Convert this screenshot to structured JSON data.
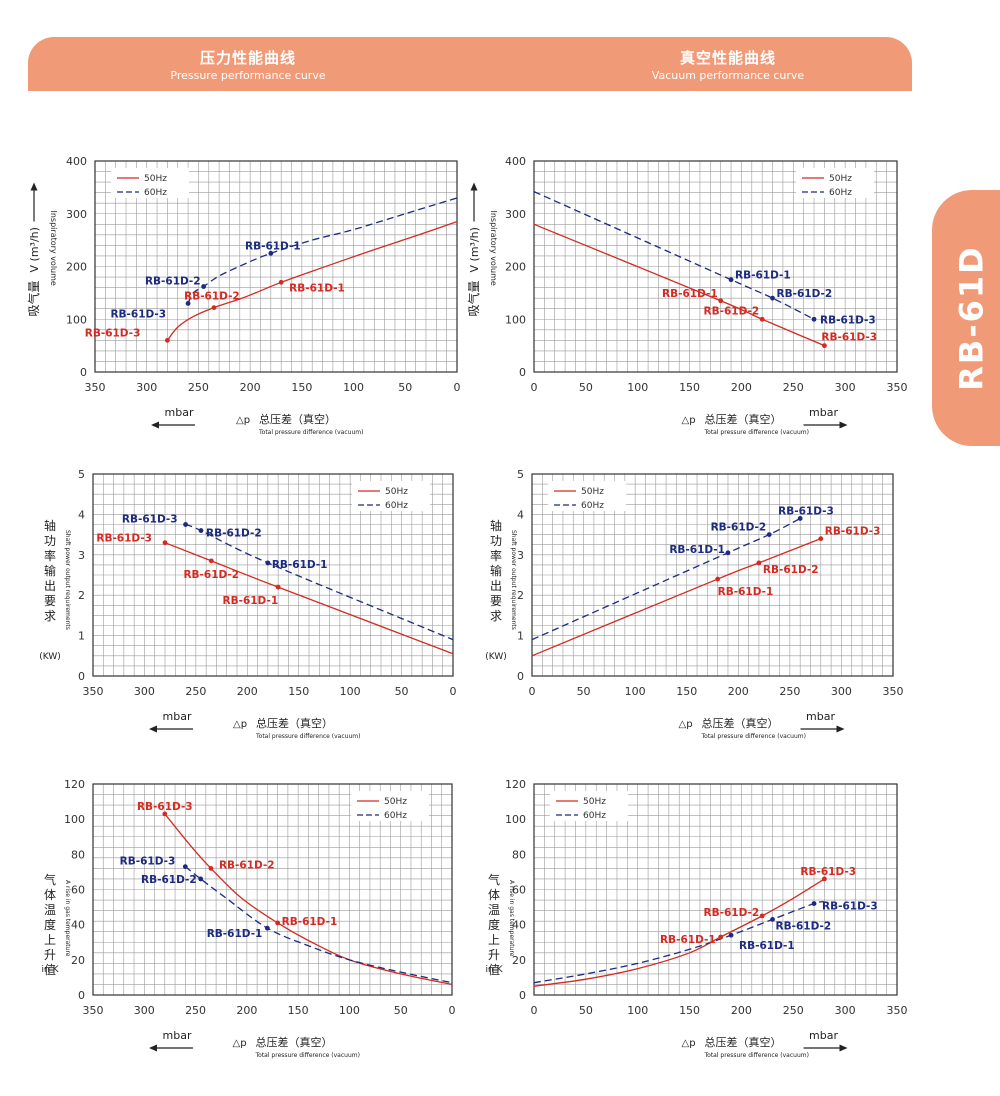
{
  "header": {
    "left": {
      "cn": "压力性能曲线",
      "en": "Pressure performance curve"
    },
    "right": {
      "cn": "真空性能曲线",
      "en": "Vacuum performance curve"
    }
  },
  "side_tab": "RB-61D",
  "colors": {
    "red": "#d42a22",
    "blue": "#1c2a80",
    "grid": "#9a9a9a",
    "accent": "#f09a78"
  },
  "common": {
    "unit": "mbar",
    "dp": "△p",
    "xlabel_cn": "总压差（真空）",
    "xlabel_en": "Total pressure difference (vacuum)",
    "legend_50": "50Hz",
    "legend_60": "60Hz"
  },
  "ylabels": {
    "volume": {
      "cn": "吸气量",
      "v": "V (m³/h)",
      "en": "Inspiratory volume"
    },
    "power": {
      "cn": "轴功率输出要求",
      "en": "Shaft power output requirements",
      "unit": "(KW)"
    },
    "temp": {
      "cn": "气体温度上升值",
      "en": "A rise in gas temperature",
      "unit": "in K"
    }
  },
  "chart_data": [
    {
      "id": "c1",
      "type": "line",
      "title": "Pressure performance curve - Inspiratory volume",
      "xlabel": "Δp total pressure difference (mbar)",
      "ylabel": "V (m³/h)",
      "xlim": [
        350,
        0
      ],
      "ylim": [
        0,
        400
      ],
      "xticks": [
        350,
        300,
        250,
        200,
        150,
        100,
        50,
        0
      ],
      "yticks": [
        0,
        100,
        200,
        300,
        400
      ],
      "legend": "top-left",
      "series": [
        {
          "name": "50Hz",
          "style": "solid",
          "points": [
            [
              280,
              60
            ],
            [
              270,
              85
            ],
            [
              255,
              105
            ],
            [
              235,
              122
            ],
            [
              205,
              142
            ],
            [
              170,
              170
            ],
            [
              130,
              198
            ],
            [
              80,
              232
            ],
            [
              40,
              258
            ],
            [
              0,
              285
            ]
          ]
        },
        {
          "name": "60Hz",
          "style": "dashed",
          "points": [
            [
              260,
              130
            ],
            [
              255,
              150
            ],
            [
              245,
              162
            ],
            [
              230,
              182
            ],
            [
              205,
              205
            ],
            [
              180,
              225
            ],
            [
              140,
              250
            ],
            [
              100,
              270
            ],
            [
              50,
              300
            ],
            [
              0,
              330
            ]
          ]
        }
      ],
      "annotations": [
        {
          "label": "RB-61D-3",
          "series": "50Hz",
          "x": 280,
          "y": 60
        },
        {
          "label": "RB-61D-2",
          "series": "50Hz",
          "x": 235,
          "y": 122
        },
        {
          "label": "RB-61D-1",
          "series": "50Hz",
          "x": 170,
          "y": 170
        },
        {
          "label": "RB-61D-3",
          "series": "60Hz",
          "x": 260,
          "y": 130
        },
        {
          "label": "RB-61D-2",
          "series": "60Hz",
          "x": 245,
          "y": 162
        },
        {
          "label": "RB-61D-1",
          "series": "60Hz",
          "x": 180,
          "y": 225
        }
      ]
    },
    {
      "id": "c2",
      "type": "line",
      "title": "Vacuum performance curve - Inspiratory volume",
      "xlabel": "Δp total pressure difference (mbar)",
      "ylabel": "V (m³/h)",
      "xlim": [
        0,
        350
      ],
      "ylim": [
        0,
        400
      ],
      "xticks": [
        0,
        50,
        100,
        150,
        200,
        250,
        300,
        350
      ],
      "yticks": [
        0,
        100,
        200,
        300,
        400
      ],
      "legend": "top-right",
      "series": [
        {
          "name": "50Hz",
          "style": "solid",
          "points": [
            [
              0,
              280
            ],
            [
              180,
              135
            ],
            [
              220,
              100
            ],
            [
              280,
              50
            ]
          ]
        },
        {
          "name": "60Hz",
          "style": "dashed",
          "points": [
            [
              0,
              342
            ],
            [
              190,
              175
            ],
            [
              230,
              140
            ],
            [
              270,
              100
            ]
          ]
        }
      ],
      "annotations": [
        {
          "label": "RB-61D-1",
          "series": "50Hz",
          "x": 180,
          "y": 135
        },
        {
          "label": "RB-61D-2",
          "series": "50Hz",
          "x": 220,
          "y": 100
        },
        {
          "label": "RB-61D-3",
          "series": "50Hz",
          "x": 280,
          "y": 50
        },
        {
          "label": "RB-61D-1",
          "series": "60Hz",
          "x": 190,
          "y": 175
        },
        {
          "label": "RB-61D-2",
          "series": "60Hz",
          "x": 230,
          "y": 140
        },
        {
          "label": "RB-61D-3",
          "series": "60Hz",
          "x": 270,
          "y": 100
        }
      ]
    },
    {
      "id": "c3",
      "type": "line",
      "title": "Pressure performance curve - Shaft power",
      "xlabel": "Δp total pressure difference (mbar)",
      "ylabel": "(KW)",
      "xlim": [
        350,
        0
      ],
      "ylim": [
        0,
        5
      ],
      "xticks": [
        350,
        300,
        250,
        200,
        150,
        100,
        50,
        0
      ],
      "yticks": [
        0,
        1,
        2,
        3,
        4,
        5
      ],
      "legend": "top-right",
      "series": [
        {
          "name": "50Hz",
          "style": "solid",
          "points": [
            [
              280,
              3.3
            ],
            [
              235,
              2.85
            ],
            [
              170,
              2.2
            ],
            [
              0,
              0.55
            ]
          ]
        },
        {
          "name": "60Hz",
          "style": "dashed",
          "points": [
            [
              260,
              3.75
            ],
            [
              245,
              3.6
            ],
            [
              180,
              2.8
            ],
            [
              0,
              0.9
            ]
          ]
        }
      ],
      "annotations": [
        {
          "label": "RB-61D-3",
          "series": "50Hz",
          "x": 280,
          "y": 3.3
        },
        {
          "label": "RB-61D-2",
          "series": "50Hz",
          "x": 235,
          "y": 2.85
        },
        {
          "label": "RB-61D-1",
          "series": "50Hz",
          "x": 170,
          "y": 2.2
        },
        {
          "label": "RB-61D-3",
          "series": "60Hz",
          "x": 260,
          "y": 3.75
        },
        {
          "label": "RB-61D-2",
          "series": "60Hz",
          "x": 245,
          "y": 3.6
        },
        {
          "label": "RB-61D-1",
          "series": "60Hz",
          "x": 180,
          "y": 2.8
        }
      ]
    },
    {
      "id": "c4",
      "type": "line",
      "title": "Vacuum performance curve - Shaft power",
      "xlabel": "Δp total pressure difference (mbar)",
      "ylabel": "(KW)",
      "xlim": [
        0,
        350
      ],
      "ylim": [
        0,
        5
      ],
      "xticks": [
        0,
        50,
        100,
        150,
        200,
        250,
        300,
        350
      ],
      "yticks": [
        0,
        1,
        2,
        3,
        4,
        5
      ],
      "legend": "top-left",
      "series": [
        {
          "name": "50Hz",
          "style": "solid",
          "points": [
            [
              0,
              0.5
            ],
            [
              180,
              2.4
            ],
            [
              220,
              2.8
            ],
            [
              280,
              3.4
            ]
          ]
        },
        {
          "name": "60Hz",
          "style": "dashed",
          "points": [
            [
              0,
              0.9
            ],
            [
              190,
              3.05
            ],
            [
              230,
              3.5
            ],
            [
              260,
              3.9
            ]
          ]
        }
      ],
      "annotations": [
        {
          "label": "RB-61D-1",
          "series": "50Hz",
          "x": 180,
          "y": 2.4
        },
        {
          "label": "RB-61D-2",
          "series": "50Hz",
          "x": 220,
          "y": 2.8
        },
        {
          "label": "RB-61D-3",
          "series": "50Hz",
          "x": 280,
          "y": 3.4
        },
        {
          "label": "RB-61D-1",
          "series": "60Hz",
          "x": 190,
          "y": 3.05
        },
        {
          "label": "RB-61D-2",
          "series": "60Hz",
          "x": 230,
          "y": 3.5
        },
        {
          "label": "RB-61D-3",
          "series": "60Hz",
          "x": 260,
          "y": 3.9
        }
      ]
    },
    {
      "id": "c5",
      "type": "line",
      "title": "Pressure performance curve - Gas temperature rise",
      "xlabel": "Δp total pressure difference (mbar)",
      "ylabel": "in K",
      "xlim": [
        350,
        0
      ],
      "ylim": [
        0,
        120
      ],
      "xticks": [
        350,
        300,
        250,
        200,
        150,
        100,
        50,
        0
      ],
      "yticks": [
        0,
        20,
        40,
        60,
        80,
        100,
        120
      ],
      "legend": "top-right",
      "series": [
        {
          "name": "50Hz",
          "style": "solid",
          "points": [
            [
              280,
              103
            ],
            [
              255,
              85
            ],
            [
              235,
              72
            ],
            [
              205,
              55
            ],
            [
              170,
              41
            ],
            [
              140,
              31
            ],
            [
              100,
              20
            ],
            [
              50,
              12
            ],
            [
              0,
              6
            ]
          ]
        },
        {
          "name": "60Hz",
          "style": "dashed",
          "points": [
            [
              260,
              73
            ],
            [
              245,
              66
            ],
            [
              220,
              55
            ],
            [
              180,
              38
            ],
            [
              140,
              28
            ],
            [
              100,
              20
            ],
            [
              50,
              13
            ],
            [
              0,
              7
            ]
          ]
        }
      ],
      "annotations": [
        {
          "label": "RB-61D-3",
          "series": "50Hz",
          "x": 280,
          "y": 103
        },
        {
          "label": "RB-61D-2",
          "series": "50Hz",
          "x": 235,
          "y": 72
        },
        {
          "label": "RB-61D-1",
          "series": "50Hz",
          "x": 170,
          "y": 41
        },
        {
          "label": "RB-61D-3",
          "series": "60Hz",
          "x": 260,
          "y": 73
        },
        {
          "label": "RB-61D-2",
          "series": "60Hz",
          "x": 245,
          "y": 66
        },
        {
          "label": "RB-61D-1",
          "series": "60Hz",
          "x": 180,
          "y": 38
        }
      ]
    },
    {
      "id": "c6",
      "type": "line",
      "title": "Vacuum performance curve - Gas temperature rise",
      "xlabel": "Δp total pressure difference (mbar)",
      "ylabel": "in K",
      "xlim": [
        0,
        350
      ],
      "ylim": [
        0,
        120
      ],
      "xticks": [
        0,
        50,
        100,
        150,
        200,
        250,
        300,
        350
      ],
      "yticks": [
        0,
        20,
        40,
        60,
        80,
        100,
        120
      ],
      "legend": "top-left",
      "series": [
        {
          "name": "50Hz",
          "style": "solid",
          "points": [
            [
              0,
              5
            ],
            [
              50,
              9
            ],
            [
              100,
              15
            ],
            [
              150,
              24
            ],
            [
              180,
              33
            ],
            [
              220,
              45
            ],
            [
              250,
              55
            ],
            [
              280,
              66
            ]
          ]
        },
        {
          "name": "60Hz",
          "style": "dashed",
          "points": [
            [
              0,
              7
            ],
            [
              50,
              12
            ],
            [
              100,
              18
            ],
            [
              150,
              26
            ],
            [
              190,
              34
            ],
            [
              230,
              43
            ],
            [
              270,
              52
            ],
            [
              280,
              53
            ]
          ]
        }
      ],
      "annotations": [
        {
          "label": "RB-61D-1",
          "series": "50Hz",
          "x": 180,
          "y": 33
        },
        {
          "label": "RB-61D-2",
          "series": "50Hz",
          "x": 220,
          "y": 45
        },
        {
          "label": "RB-61D-3",
          "series": "50Hz",
          "x": 280,
          "y": 66
        },
        {
          "label": "RB-61D-1",
          "series": "60Hz",
          "x": 190,
          "y": 34
        },
        {
          "label": "RB-61D-2",
          "series": "60Hz",
          "x": 230,
          "y": 43
        },
        {
          "label": "RB-61D-3",
          "series": "60Hz",
          "x": 270,
          "y": 52
        }
      ]
    }
  ]
}
